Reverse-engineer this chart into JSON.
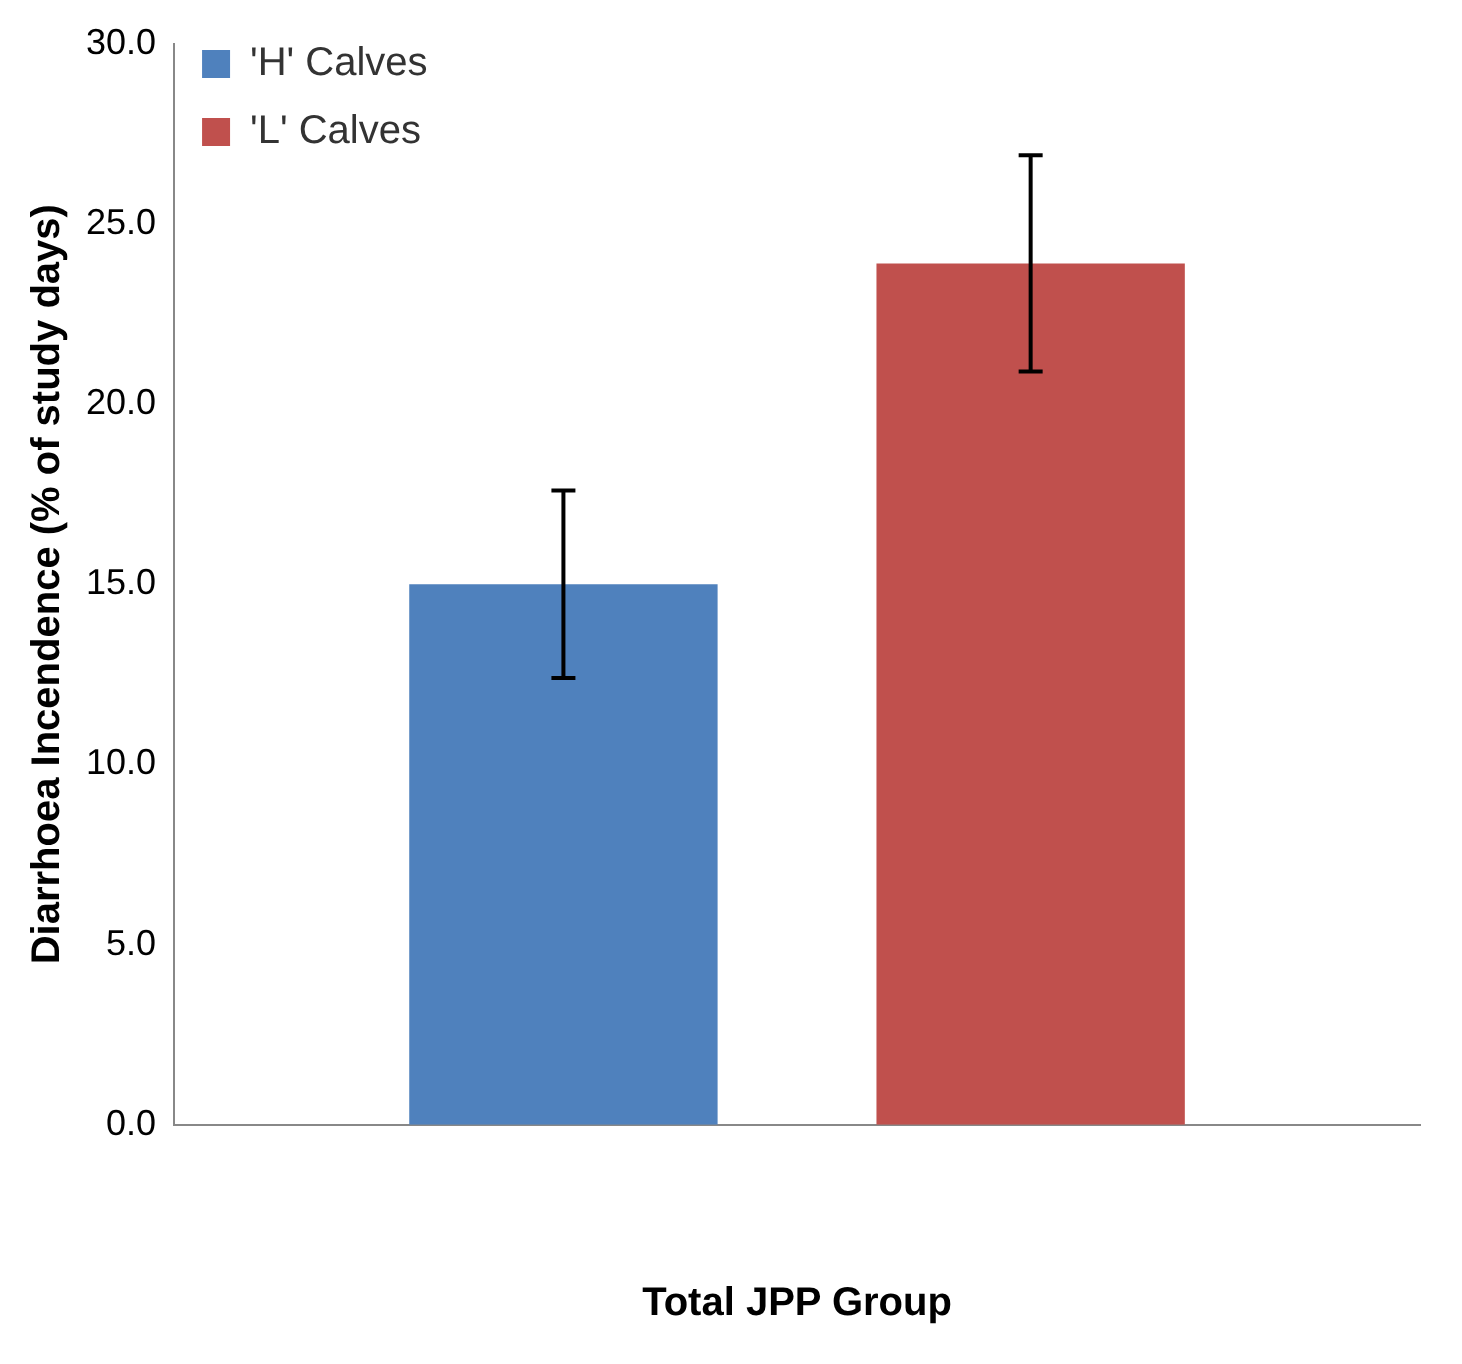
{
  "chart_data": {
    "type": "bar",
    "xlabel": "Total JPP Group",
    "ylabel": "Diarrhoea Incendence (% of study days)",
    "categories": [
      null
    ],
    "series": [
      {
        "name": "'H' Calves",
        "color": "#4f81bd",
        "values": [
          15.0
        ],
        "errors": [
          2.6
        ]
      },
      {
        "name": "'L' Calves",
        "color": "#c0504d",
        "values": [
          23.9
        ],
        "errors": [
          3.0
        ]
      }
    ],
    "ylim": [
      0,
      30
    ],
    "yticks": [
      {
        "value": 0,
        "label": "0.0"
      },
      {
        "value": 5,
        "label": "5.0"
      },
      {
        "value": 10,
        "label": "10.0"
      },
      {
        "value": 15,
        "label": "15.0"
      },
      {
        "value": 20,
        "label": "20.0"
      },
      {
        "value": 25,
        "label": "25.0"
      },
      {
        "value": 30,
        "label": "30.0"
      }
    ],
    "grid": false,
    "legend": "top left"
  }
}
